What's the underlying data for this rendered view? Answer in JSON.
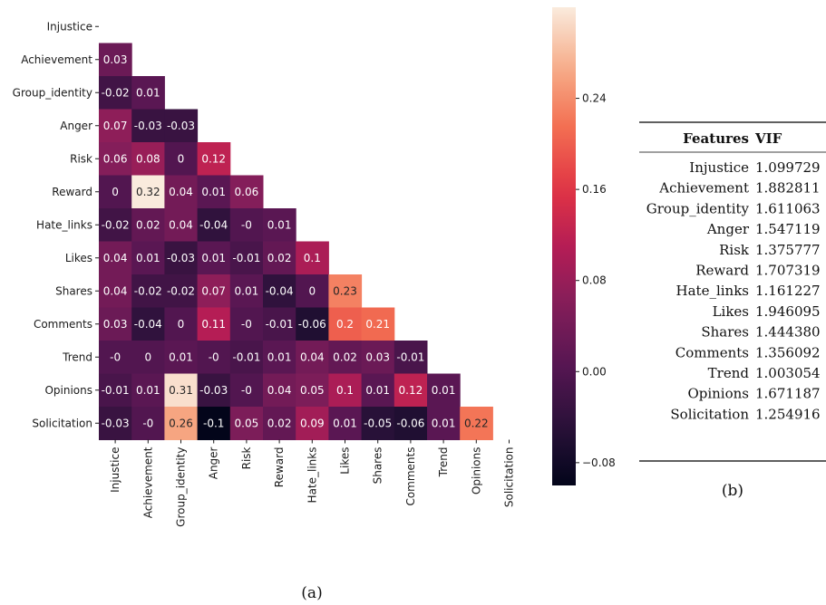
{
  "chart_data": [
    {
      "type": "heatmap",
      "labels": [
        "Injustice",
        "Achievement",
        "Group_identity",
        "Anger",
        "Risk",
        "Reward",
        "Hate_links",
        "Likes",
        "Shares",
        "Comments",
        "Trend",
        "Opinions",
        "Solicitation"
      ],
      "rows": [
        {
          "label": "Injustice",
          "values": []
        },
        {
          "label": "Achievement",
          "values": [
            "0.03"
          ]
        },
        {
          "label": "Group_identity",
          "values": [
            "-0.02",
            "0.01"
          ]
        },
        {
          "label": "Anger",
          "values": [
            "0.07",
            "-0.03",
            "-0.03"
          ]
        },
        {
          "label": "Risk",
          "values": [
            "0.06",
            "0.08",
            "0",
            "0.12"
          ]
        },
        {
          "label": "Reward",
          "values": [
            "0",
            "0.32",
            "0.04",
            "0.01",
            "0.06"
          ]
        },
        {
          "label": "Hate_links",
          "values": [
            "-0.02",
            "0.02",
            "0.04",
            "-0.04",
            "-0",
            "0.01"
          ]
        },
        {
          "label": "Likes",
          "values": [
            "0.04",
            "0.01",
            "-0.03",
            "0.01",
            "-0.01",
            "0.02",
            "0.1"
          ]
        },
        {
          "label": "Shares",
          "values": [
            "0.04",
            "-0.02",
            "-0.02",
            "0.07",
            "0.01",
            "-0.04",
            "0",
            "0.23"
          ]
        },
        {
          "label": "Comments",
          "values": [
            "0.03",
            "-0.04",
            "0",
            "0.11",
            "-0",
            "-0.01",
            "-0.06",
            "0.2",
            "0.21"
          ]
        },
        {
          "label": "Trend",
          "values": [
            "-0",
            "0",
            "0.01",
            "-0",
            "-0.01",
            "0.01",
            "0.04",
            "0.02",
            "0.03",
            "-0.01"
          ]
        },
        {
          "label": "Opinions",
          "values": [
            "-0.01",
            "0.01",
            "0.31",
            "-0.03",
            "-0",
            "0.04",
            "0.05",
            "0.1",
            "0.01",
            "0.12",
            "0.01"
          ]
        },
        {
          "label": "Solicitation",
          "values": [
            "-0.03",
            "-0",
            "0.26",
            "-0.1",
            "0.05",
            "0.02",
            "0.09",
            "0.01",
            "-0.05",
            "-0.06",
            "0.01",
            "0.22"
          ]
        }
      ],
      "mask": "upper-triangle-and-diagonal",
      "colormap": "rocket",
      "colorbar": {
        "range": [
          -0.1,
          0.32
        ],
        "ticks": [
          "0.24",
          "0.16",
          "0.08",
          "0.00",
          "−0.08"
        ]
      },
      "caption": "(a)"
    },
    {
      "type": "table",
      "columns": [
        "Features",
        "VIF"
      ],
      "rows": [
        [
          "Injustice",
          "1.099729"
        ],
        [
          "Achievement",
          "1.882811"
        ],
        [
          "Group_identity",
          "1.611063"
        ],
        [
          "Anger",
          "1.547119"
        ],
        [
          "Risk",
          "1.375777"
        ],
        [
          "Reward",
          "1.707319"
        ],
        [
          "Hate_links",
          "1.161227"
        ],
        [
          "Likes",
          "1.946095"
        ],
        [
          "Shares",
          "1.444380"
        ],
        [
          "Comments",
          "1.356092"
        ],
        [
          "Trend",
          "1.003054"
        ],
        [
          "Opinions",
          "1.671187"
        ],
        [
          "Solicitation",
          "1.254916"
        ]
      ],
      "caption": "(b)"
    }
  ]
}
